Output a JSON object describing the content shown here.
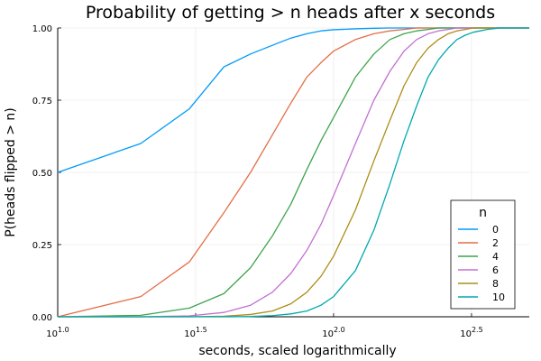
{
  "chart_data": {
    "type": "line",
    "title": "Probability of getting > n heads after x seconds",
    "xlabel": "seconds, scaled logarithmically",
    "ylabel": "P(heads flipped > n)",
    "x_scale": "log10",
    "xlim": [
      10,
      512
    ],
    "ylim": [
      0,
      1
    ],
    "grid": true,
    "x_ticks": [
      {
        "value": 10,
        "base": "10",
        "exp": "1.0"
      },
      {
        "value": 31.62,
        "base": "10",
        "exp": "1.5"
      },
      {
        "value": 100,
        "base": "10",
        "exp": "2.0"
      },
      {
        "value": 316.2,
        "base": "10",
        "exp": "2.5"
      }
    ],
    "y_ticks": [
      {
        "value": 0,
        "label": "0.00"
      },
      {
        "value": 0.25,
        "label": "0.25"
      },
      {
        "value": 0.5,
        "label": "0.50"
      },
      {
        "value": 0.75,
        "label": "0.75"
      },
      {
        "value": 1,
        "label": "1.00"
      }
    ],
    "legend": {
      "title": "n",
      "position": "bottom-right"
    },
    "x": [
      10,
      20,
      30,
      40,
      50,
      60,
      70,
      80,
      90,
      100,
      120,
      140,
      160,
      180,
      200,
      220,
      240,
      260,
      280,
      300,
      320,
      340,
      360,
      400,
      450,
      512
    ],
    "series": [
      {
        "name": "0",
        "color": "#009AFA",
        "values": [
          0.5,
          0.6,
          0.72,
          0.865,
          0.91,
          0.94,
          0.965,
          0.98,
          0.99,
          0.994,
          0.997,
          0.999,
          1.0,
          1.0,
          1.0,
          1.0,
          1.0,
          1.0,
          1.0,
          1.0,
          1.0,
          1.0,
          1.0,
          1.0,
          1.0,
          1.0
        ]
      },
      {
        "name": "2",
        "color": "#E36F47",
        "values": [
          0.0,
          0.07,
          0.19,
          0.36,
          0.5,
          0.63,
          0.74,
          0.83,
          0.88,
          0.92,
          0.96,
          0.98,
          0.99,
          0.995,
          1.0,
          1.0,
          1.0,
          1.0,
          1.0,
          1.0,
          1.0,
          1.0,
          1.0,
          1.0,
          1.0,
          1.0
        ]
      },
      {
        "name": "4",
        "color": "#3EA44E",
        "values": [
          0.0,
          0.005,
          0.03,
          0.08,
          0.17,
          0.28,
          0.39,
          0.51,
          0.61,
          0.69,
          0.83,
          0.91,
          0.96,
          0.98,
          0.99,
          0.995,
          1.0,
          1.0,
          1.0,
          1.0,
          1.0,
          1.0,
          1.0,
          1.0,
          1.0,
          1.0
        ]
      },
      {
        "name": "6",
        "color": "#C271D2",
        "values": [
          0.0,
          0.0,
          0.003,
          0.015,
          0.04,
          0.085,
          0.15,
          0.23,
          0.32,
          0.42,
          0.6,
          0.75,
          0.85,
          0.92,
          0.96,
          0.98,
          0.99,
          0.995,
          1.0,
          1.0,
          1.0,
          1.0,
          1.0,
          1.0,
          1.0,
          1.0
        ]
      },
      {
        "name": "8",
        "color": "#AC8D18",
        "values": [
          0.0,
          0.0,
          0.0,
          0.002,
          0.008,
          0.02,
          0.045,
          0.085,
          0.14,
          0.21,
          0.37,
          0.54,
          0.68,
          0.8,
          0.88,
          0.93,
          0.96,
          0.98,
          0.99,
          0.995,
          1.0,
          1.0,
          1.0,
          1.0,
          1.0,
          1.0
        ]
      },
      {
        "name": "10",
        "color": "#00A9AD",
        "values": [
          0.0,
          0.0,
          0.0,
          0.0,
          0.001,
          0.004,
          0.01,
          0.02,
          0.04,
          0.07,
          0.16,
          0.3,
          0.46,
          0.61,
          0.73,
          0.83,
          0.89,
          0.93,
          0.96,
          0.975,
          0.985,
          0.99,
          0.995,
          1.0,
          1.0,
          1.0
        ]
      }
    ]
  }
}
